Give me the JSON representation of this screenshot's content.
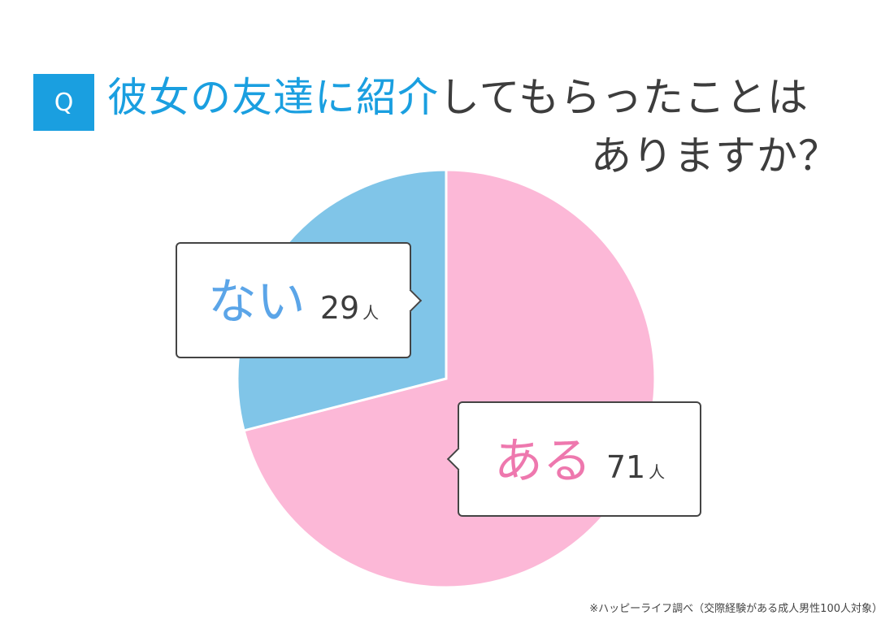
{
  "question": {
    "badge": "Q",
    "title_highlight": "彼女の友達に紹介",
    "title_rest": "してもらったことは",
    "title_line2": "ありますか？"
  },
  "chart_data": {
    "type": "pie",
    "title": "彼女の友達に紹介してもらったことはありますか？",
    "unit": "人",
    "slices": [
      {
        "label": "ある",
        "value": 71,
        "display": "71",
        "color": "#fcb8d7"
      },
      {
        "label": "ない",
        "value": 29,
        "display": "29",
        "color": "#80c5e8"
      }
    ]
  },
  "footnote": "※ハッピーライフ調べ（交際経験がある成人男性100人対象）"
}
